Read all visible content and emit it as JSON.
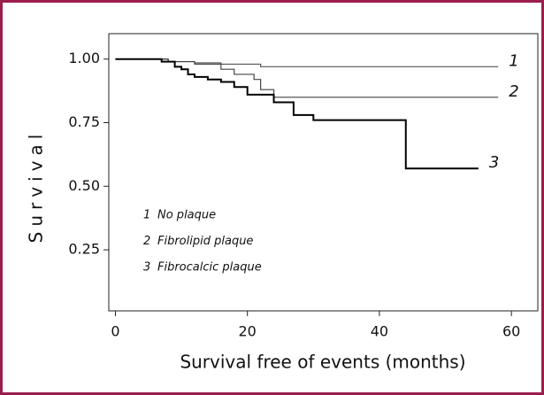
{
  "chart_data": {
    "type": "line",
    "xlabel": "Survival free of events (months)",
    "ylabel": "Survival",
    "xlim": [
      -1,
      64
    ],
    "ylim": [
      0.01,
      1.1
    ],
    "xticks": [
      0,
      20,
      40,
      60
    ],
    "yticks": [
      {
        "value": 0.25,
        "label": "0.25"
      },
      {
        "value": 0.5,
        "label": "0.50"
      },
      {
        "value": 0.75,
        "label": "0.75"
      },
      {
        "value": 1,
        "label": "1.00"
      }
    ],
    "step": true,
    "series": [
      {
        "label": "1",
        "name": "No plaque",
        "color": "#555555",
        "x": [
          0,
          8,
          12,
          16,
          22,
          58
        ],
        "values": [
          1,
          0.99,
          0.985,
          0.98,
          0.97,
          0.97
        ]
      },
      {
        "label": "2",
        "name": "Fibrolipid plaque",
        "color": "#444444",
        "x": [
          0,
          8,
          12,
          16,
          18,
          21,
          22,
          24,
          58
        ],
        "values": [
          1,
          0.99,
          0.98,
          0.96,
          0.94,
          0.92,
          0.88,
          0.85,
          0.85
        ]
      },
      {
        "label": "3",
        "name": "Fibrocalcic plaque",
        "color": "#000000",
        "x": [
          0,
          7,
          9,
          10,
          11,
          12,
          14,
          16,
          18,
          20,
          24,
          27,
          30,
          44,
          55
        ],
        "values": [
          1,
          0.99,
          0.97,
          0.96,
          0.94,
          0.93,
          0.92,
          0.91,
          0.89,
          0.86,
          0.83,
          0.78,
          0.76,
          0.57,
          0.57
        ]
      }
    ]
  }
}
